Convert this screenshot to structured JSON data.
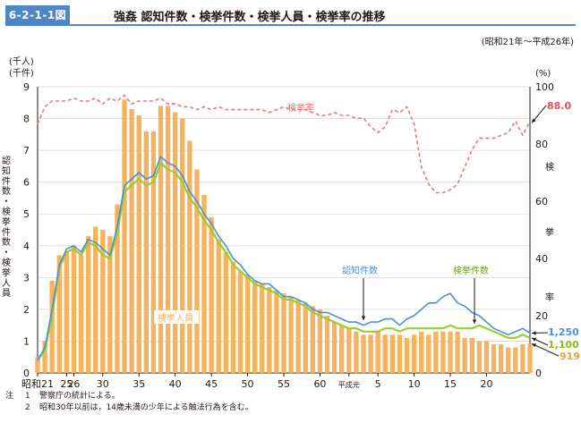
{
  "figure": {
    "number": "6-2-1-1図",
    "title": "強姦 認知件数・検挙件数・検挙人員・検挙率の推移",
    "subtitle": "(昭和21年～平成26年)"
  },
  "notes": [
    {
      "label": "注",
      "num": "1",
      "text": "警察庁の統計による。"
    },
    {
      "label": "",
      "num": "2",
      "text": "昭和30年以前は，14歳未満の少年による触法行為を含む。"
    }
  ],
  "colors": {
    "bars": "#f6b25c",
    "recognized": "#4a90d9",
    "cleared": "#9acd32",
    "rate": "#e8777b",
    "badge": "#4f86c6"
  },
  "chart_data": {
    "type": "bar+line",
    "years": [
      "昭和21",
      "22",
      "23",
      "24",
      "25",
      "26",
      "27",
      "28",
      "29",
      "30",
      "31",
      "32",
      "33",
      "34",
      "35",
      "36",
      "37",
      "38",
      "39",
      "40",
      "41",
      "42",
      "43",
      "44",
      "45",
      "46",
      "47",
      "48",
      "49",
      "50",
      "51",
      "52",
      "53",
      "54",
      "55",
      "56",
      "57",
      "58",
      "59",
      "60",
      "61",
      "62",
      "63",
      "平成元",
      "2",
      "3",
      "4",
      "5",
      "6",
      "7",
      "8",
      "9",
      "10",
      "11",
      "12",
      "13",
      "14",
      "15",
      "16",
      "17",
      "18",
      "19",
      "20",
      "21",
      "22",
      "23",
      "24",
      "25",
      "26"
    ],
    "x_tick_labels": [
      "昭和21",
      "25",
      "30",
      "35",
      "40",
      "45",
      "50",
      "55",
      "60",
      "平成元",
      "5",
      "10",
      "15",
      "20",
      "26"
    ],
    "ylabel_left": "認知件数・検挙件数・検挙人員",
    "ylabel_left_unit": "(千人)\n(千件)",
    "ylabel_right": "検挙率",
    "ylabel_right_unit": "(%)",
    "y_left_range": [
      0,
      9
    ],
    "y_left_ticks": [
      "0",
      "1",
      "2",
      "3",
      "4",
      "5",
      "6",
      "7",
      "8",
      "9"
    ],
    "y_right_range": [
      0,
      100
    ],
    "y_right_ticks": [
      "0",
      "20",
      "40",
      "60",
      "80",
      "100"
    ],
    "series": [
      {
        "name": "検挙人員",
        "kind": "bar",
        "axis": "left",
        "unit": "千人",
        "values": [
          0.5,
          1.0,
          2.9,
          3.7,
          3.8,
          4.0,
          3.7,
          4.3,
          4.6,
          4.5,
          4.3,
          5.3,
          8.6,
          8.3,
          8.1,
          7.6,
          7.6,
          8.4,
          8.4,
          8.2,
          8.0,
          7.3,
          6.4,
          5.6,
          4.9,
          4.2,
          3.8,
          3.5,
          3.2,
          3.1,
          2.9,
          2.8,
          2.7,
          2.6,
          2.5,
          2.4,
          2.3,
          2.2,
          2.1,
          2.0,
          1.8,
          1.6,
          1.5,
          1.4,
          1.3,
          1.2,
          1.2,
          1.3,
          1.2,
          1.2,
          1.2,
          1.1,
          1.2,
          1.3,
          1.2,
          1.3,
          1.3,
          1.3,
          1.3,
          1.1,
          1.1,
          1.0,
          1.0,
          0.9,
          0.9,
          0.8,
          0.8,
          0.9,
          0.919
        ]
      },
      {
        "name": "認知件数",
        "kind": "line",
        "axis": "left",
        "unit": "千件",
        "values": [
          0.4,
          0.8,
          2.0,
          3.4,
          3.9,
          4.0,
          3.8,
          4.2,
          4.1,
          3.9,
          3.7,
          4.6,
          5.9,
          6.1,
          6.3,
          6.1,
          6.2,
          6.8,
          6.6,
          6.5,
          6.2,
          5.7,
          5.4,
          5.0,
          4.7,
          4.3,
          4.0,
          3.6,
          3.4,
          3.1,
          2.9,
          2.8,
          2.8,
          2.6,
          2.4,
          2.4,
          2.3,
          2.2,
          2.0,
          1.9,
          1.9,
          1.8,
          1.7,
          1.6,
          1.6,
          1.5,
          1.6,
          1.6,
          1.7,
          1.7,
          1.5,
          1.7,
          1.8,
          2.0,
          2.2,
          2.2,
          2.4,
          2.5,
          2.2,
          2.1,
          1.9,
          1.8,
          1.6,
          1.4,
          1.3,
          1.2,
          1.3,
          1.4,
          1.25
        ]
      },
      {
        "name": "検挙件数",
        "kind": "line",
        "axis": "left",
        "unit": "千件",
        "values": [
          0.4,
          0.7,
          1.8,
          3.3,
          3.8,
          3.9,
          3.7,
          4.1,
          4.0,
          3.7,
          3.6,
          4.4,
          5.7,
          5.9,
          6.1,
          5.9,
          6.0,
          6.6,
          6.4,
          6.3,
          6.0,
          5.5,
          5.2,
          4.8,
          4.5,
          4.1,
          3.8,
          3.4,
          3.2,
          3.0,
          2.8,
          2.7,
          2.6,
          2.5,
          2.3,
          2.3,
          2.2,
          2.1,
          1.9,
          1.8,
          1.7,
          1.6,
          1.5,
          1.4,
          1.4,
          1.3,
          1.3,
          1.3,
          1.4,
          1.4,
          1.3,
          1.4,
          1.4,
          1.4,
          1.4,
          1.4,
          1.4,
          1.5,
          1.4,
          1.4,
          1.4,
          1.5,
          1.4,
          1.3,
          1.2,
          1.1,
          1.1,
          1.2,
          1.1
        ]
      },
      {
        "name": "検挙率",
        "kind": "line",
        "axis": "right",
        "unit": "%",
        "values": [
          87,
          93,
          95,
          95,
          95,
          96,
          95,
          95,
          96,
          94,
          96,
          95,
          97,
          94,
          95,
          95,
          95,
          96,
          94,
          94,
          93,
          93,
          92,
          93,
          92,
          93,
          92,
          92,
          92,
          92,
          92,
          92,
          91,
          92,
          93,
          92,
          92,
          92,
          91,
          90,
          90,
          91,
          90,
          90,
          89,
          89,
          86,
          84,
          86,
          92,
          91,
          93,
          87,
          72,
          66,
          63,
          63,
          64,
          66,
          72,
          78,
          82,
          82,
          82,
          83,
          84,
          88,
          83,
          88.0
        ]
      }
    ],
    "end_labels": {
      "検挙率": "88.0",
      "認知件数": "1,250",
      "検挙件数": "1,100",
      "検挙人員": "919"
    },
    "in_chart_labels": {
      "rate": "検挙率",
      "recognized": "認知件数",
      "cleared": "検挙件数",
      "persons": "検挙人員"
    }
  }
}
